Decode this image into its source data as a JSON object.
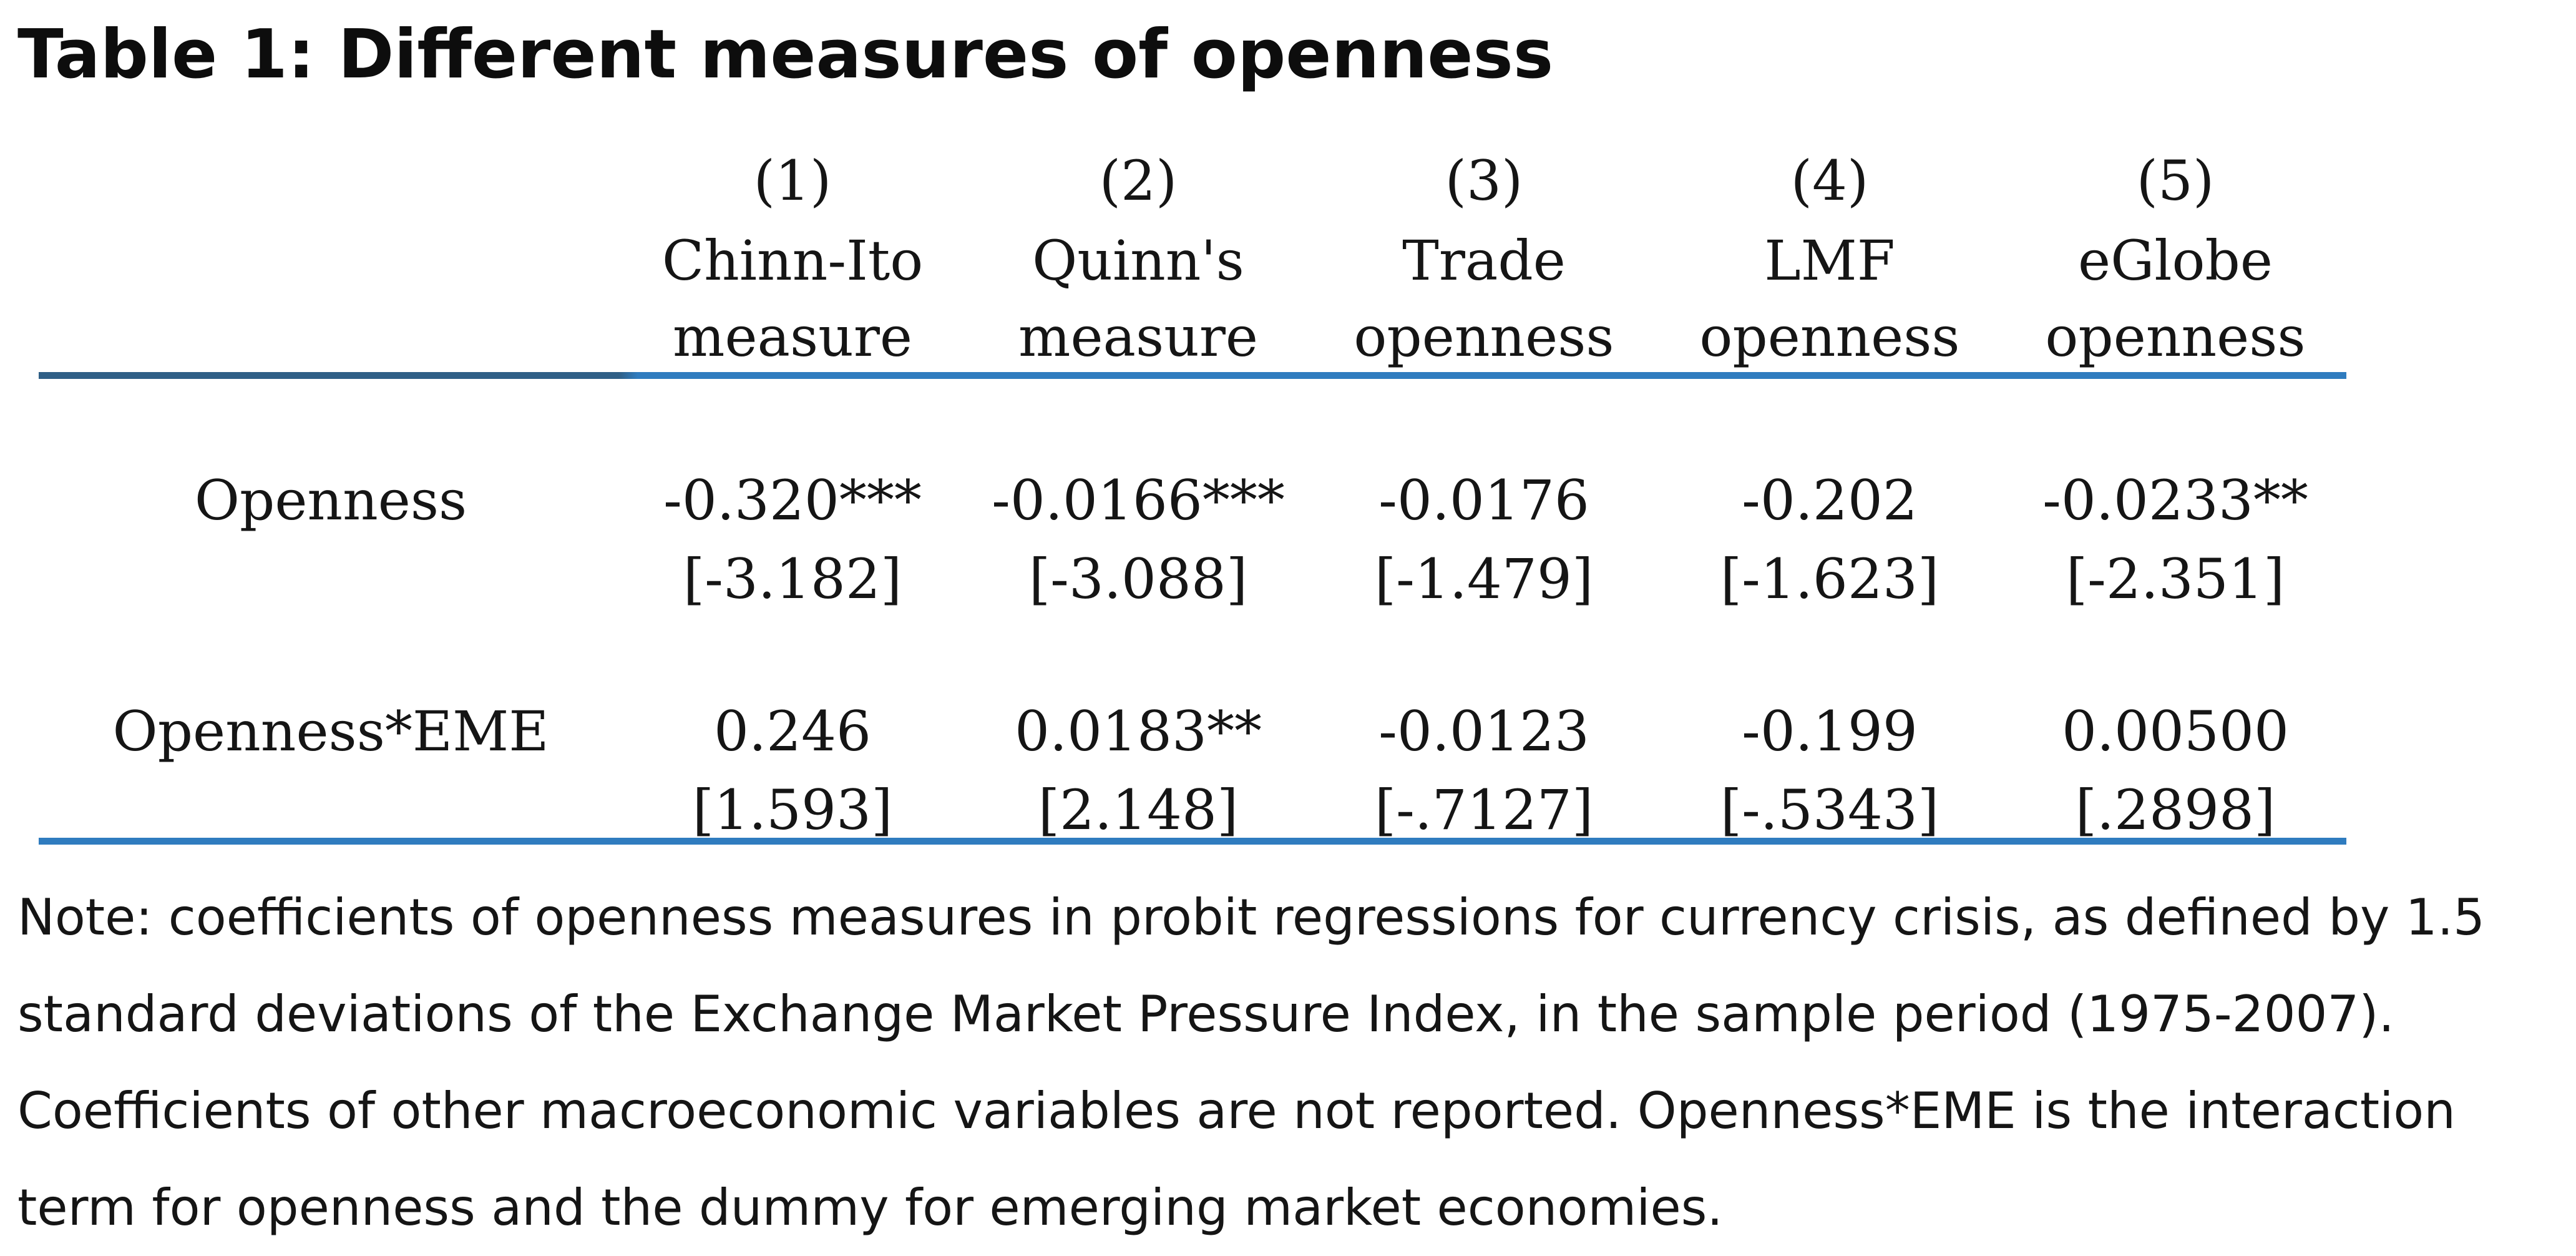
{
  "title": "Table 1: Different measures of openness",
  "columns": [
    {
      "number": "(1)",
      "line1": "Chinn-Ito",
      "line2": "measure"
    },
    {
      "number": "(2)",
      "line1": "Quinn's",
      "line2": "measure"
    },
    {
      "number": "(3)",
      "line1": "Trade",
      "line2": "openness"
    },
    {
      "number": "(4)",
      "line1": "LMF",
      "line2": "openness"
    },
    {
      "number": "(5)",
      "line1": "eGlobe",
      "line2": "openness"
    }
  ],
  "rows": [
    {
      "label": "Openness",
      "coefficients": [
        "-0.320***",
        "-0.0166***",
        "-0.0176",
        "-0.202",
        "-0.0233**"
      ],
      "t_stats": [
        "[-3.182]",
        "[-3.088]",
        "[-1.479]",
        "[-1.623]",
        "[-2.351]"
      ]
    },
    {
      "label": "Openness*EME",
      "coefficients": [
        "0.246",
        "0.0183**",
        "-0.0123",
        "-0.199",
        "0.00500"
      ],
      "t_stats": [
        "[1.593]",
        "[2.148]",
        "[-.7127]",
        "[-.5343]",
        "[.2898]"
      ]
    }
  ],
  "note": "Note: coefficients of openness measures in probit regressions for currency crisis, as defined by 1.5 standard deviations of the Exchange Market Pressure Index, in the sample period (1975-2007). Coefficients of other macroeconomic variables are not reported. Openness*EME is the interaction term for openness and the dummy for emerging market economies."
}
